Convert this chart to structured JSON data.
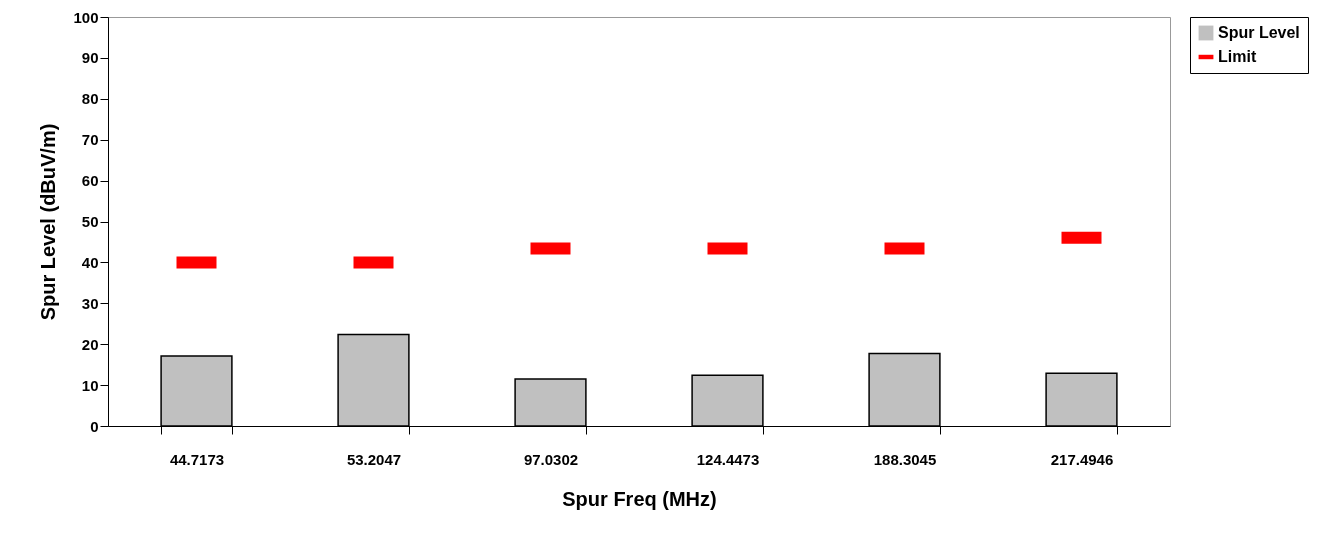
{
  "chart_data": {
    "type": "bar",
    "xlabel": "Spur Freq (MHz)",
    "ylabel": "Spur Level (dBuV/m)",
    "categories": [
      "44.7173",
      "53.2047",
      "97.0302",
      "124.4473",
      "188.3045",
      "217.4946"
    ],
    "series": [
      {
        "name": "Spur Level",
        "color": "#c0c0c0",
        "values": [
          17.1,
          22.4,
          11.5,
          12.4,
          17.7,
          12.9
        ]
      },
      {
        "name": "Limit",
        "type": "scatter",
        "color": "#ff0000",
        "values": [
          40,
          40,
          43.4,
          43.4,
          43.4,
          46
        ]
      }
    ],
    "ylim": [
      0,
      100
    ],
    "yticks": [
      0,
      10,
      20,
      30,
      40,
      50,
      60,
      70,
      80,
      90,
      100
    ],
    "grid": false,
    "legend": "right"
  }
}
